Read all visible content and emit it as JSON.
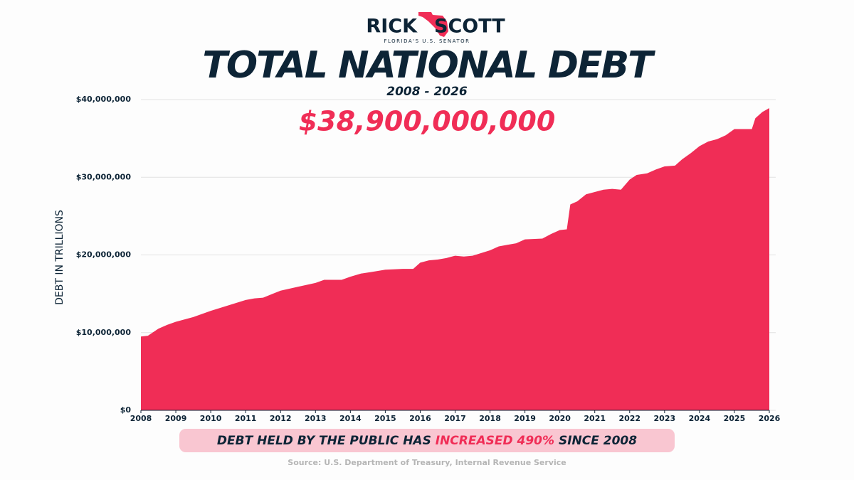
{
  "chart_data": {
    "type": "area",
    "logo": {
      "name_left": "RICK",
      "name_right": "SCOTT",
      "tagline": "FLORIDA'S U.S. SENATOR"
    },
    "title": "TOTAL NATIONAL DEBT",
    "subtitle": "2008 - 2026",
    "annotation": "$38,900,000,000",
    "ylabel": "DEBT IN TRILLIONS",
    "footer_note": [
      "DEBT HELD BY THE PUBLIC HAS ",
      "INCREASED 490%",
      " SINCE 2008"
    ],
    "source": "Source: U.S. Department of Treasury, Internal Revenue Service",
    "color": "#f02d56",
    "grid": true,
    "xlim": [
      2008,
      2026
    ],
    "xticks": [
      2008,
      2009,
      2010,
      2011,
      2012,
      2013,
      2014,
      2015,
      2016,
      2017,
      2018,
      2019,
      2020,
      2021,
      2022,
      2023,
      2024,
      2025,
      2026
    ],
    "ylim": [
      0,
      40000000
    ],
    "yticks": [
      {
        "value": 0,
        "label": "$0"
      },
      {
        "value": 10000000,
        "label": "$10,000,000"
      },
      {
        "value": 20000000,
        "label": "$20,000,000"
      },
      {
        "value": 30000000,
        "label": "$30,000,000"
      },
      {
        "value": 40000000,
        "label": "$40,000,000"
      }
    ],
    "x": [
      2008,
      2008.2,
      2008.5,
      2008.75,
      2009,
      2009.5,
      2010,
      2010.5,
      2011,
      2011.25,
      2011.5,
      2012,
      2012.5,
      2013,
      2013.25,
      2013.75,
      2014,
      2014.3,
      2014.6,
      2015,
      2015.5,
      2015.8,
      2016,
      2016.25,
      2016.5,
      2016.75,
      2017,
      2017.25,
      2017.5,
      2018,
      2018.25,
      2018.5,
      2018.75,
      2019,
      2019.5,
      2019.75,
      2020,
      2020.2,
      2020.3,
      2020.5,
      2020.75,
      2021,
      2021.25,
      2021.5,
      2021.75,
      2022,
      2022.2,
      2022.5,
      2022.75,
      2023,
      2023.3,
      2023.5,
      2023.75,
      2024,
      2024.25,
      2024.5,
      2024.75,
      2025,
      2025.5,
      2025.6,
      2025.8,
      2026
    ],
    "values": [
      9500000,
      9600000,
      10500000,
      11000000,
      11400000,
      12000000,
      12800000,
      13500000,
      14200000,
      14400000,
      14500000,
      15400000,
      15900000,
      16400000,
      16800000,
      16800000,
      17200000,
      17600000,
      17800000,
      18100000,
      18200000,
      18200000,
      19000000,
      19300000,
      19400000,
      19600000,
      19900000,
      19800000,
      19900000,
      20600000,
      21100000,
      21300000,
      21500000,
      22000000,
      22100000,
      22700000,
      23200000,
      23300000,
      26500000,
      26900000,
      27800000,
      28100000,
      28400000,
      28500000,
      28400000,
      29700000,
      30300000,
      30500000,
      31000000,
      31400000,
      31500000,
      32300000,
      33100000,
      34000000,
      34600000,
      34900000,
      35400000,
      36200000,
      36200000,
      37600000,
      38400000,
      38900000
    ]
  }
}
